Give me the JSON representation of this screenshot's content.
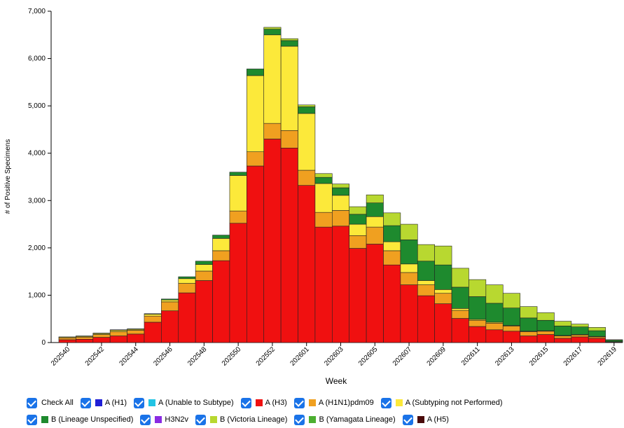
{
  "chart_data": {
    "type": "stacked-bar",
    "xlabel": "Week",
    "ylabel": "# of Positive Specimens",
    "categories": [
      "202540",
      null,
      "202542",
      null,
      "202544",
      null,
      "202546",
      null,
      "202548",
      null,
      "202550",
      null,
      "202552",
      null,
      "202601",
      null,
      "202603",
      null,
      "202605",
      null,
      "202607",
      null,
      "202609",
      null,
      "202611",
      null,
      "202613",
      null,
      "202615",
      null,
      "202617",
      null,
      "202619"
    ],
    "ylim": [
      0,
      7000
    ],
    "yticks": [
      0,
      {
        "value": 1000,
        "label": "1,000"
      },
      {
        "value": 2000,
        "label": "2,000"
      },
      {
        "value": 3000,
        "label": "3,000"
      },
      {
        "value": 4000,
        "label": "4,000"
      },
      {
        "value": 5000,
        "label": "5,000"
      },
      {
        "value": 6000,
        "label": "6,000"
      },
      {
        "value": 7000,
        "label": "7,000"
      }
    ],
    "check_all": "Check All",
    "series": [
      {
        "name": "A (H1)",
        "color": "#1f1fd6",
        "values": [
          0,
          0,
          0,
          0,
          0,
          0,
          0,
          0,
          0,
          0,
          0,
          0,
          0,
          0,
          0,
          0,
          0,
          0,
          0,
          0,
          0,
          0,
          0,
          0,
          0,
          0,
          0,
          0,
          0,
          0,
          0,
          0,
          0
        ]
      },
      {
        "name": "A (Unable to Subtype)",
        "color": "#22c4e4",
        "values": [
          0,
          0,
          0,
          0,
          0,
          0,
          0,
          0,
          0,
          0,
          0,
          0,
          0,
          0,
          0,
          0,
          0,
          0,
          0,
          0,
          0,
          0,
          0,
          0,
          0,
          0,
          0,
          0,
          0,
          0,
          0,
          0,
          0
        ]
      },
      {
        "name": "A (H3)",
        "color": "#f01010",
        "values": [
          60,
          70,
          110,
          140,
          180,
          430,
          670,
          1050,
          1310,
          1730,
          2520,
          3730,
          4300,
          4110,
          3320,
          2440,
          2460,
          1990,
          2080,
          1640,
          1220,
          990,
          820,
          510,
          340,
          270,
          240,
          140,
          170,
          90,
          120,
          90,
          10
        ]
      },
      {
        "name": "A (H1N1)pdm09",
        "color": "#f0a020",
        "values": [
          40,
          45,
          60,
          90,
          80,
          130,
          190,
          200,
          200,
          210,
          260,
          300,
          330,
          370,
          320,
          310,
          330,
          270,
          360,
          300,
          260,
          230,
          220,
          170,
          130,
          140,
          110,
          90,
          70,
          50,
          40,
          30,
          5
        ]
      },
      {
        "name": "A (Subtyping not Performed)",
        "color": "#fce93a",
        "values": [
          15,
          15,
          20,
          30,
          20,
          40,
          40,
          100,
          140,
          260,
          750,
          1610,
          1870,
          1780,
          1200,
          610,
          320,
          240,
          220,
          190,
          180,
          90,
          80,
          40,
          20,
          20,
          10,
          10,
          10,
          10,
          10,
          10,
          5
        ]
      },
      {
        "name": "B (Lineage Unspecified)",
        "color": "#1e8a2e",
        "values": [
          5,
          10,
          10,
          10,
          10,
          10,
          20,
          40,
          70,
          70,
          70,
          140,
          120,
          120,
          140,
          130,
          160,
          210,
          290,
          340,
          510,
          410,
          520,
          450,
          480,
          400,
          370,
          280,
          220,
          200,
          160,
          120,
          30
        ]
      },
      {
        "name": "H3N2v",
        "color": "#8a2be2",
        "values": [
          0,
          0,
          0,
          0,
          0,
          0,
          0,
          0,
          0,
          0,
          0,
          0,
          0,
          0,
          0,
          0,
          0,
          0,
          0,
          0,
          0,
          0,
          0,
          0,
          0,
          0,
          0,
          0,
          0,
          0,
          0,
          0,
          0
        ]
      },
      {
        "name": "B (Victoria Lineage)",
        "color": "#b8d830",
        "values": [
          0,
          0,
          0,
          0,
          0,
          0,
          0,
          0,
          0,
          0,
          0,
          0,
          40,
          40,
          40,
          80,
          80,
          160,
          170,
          270,
          330,
          350,
          400,
          400,
          360,
          390,
          310,
          240,
          160,
          100,
          60,
          70,
          10
        ]
      },
      {
        "name": "B (Yamagata Lineage)",
        "color": "#4caf30",
        "values": [
          0,
          0,
          0,
          0,
          0,
          0,
          0,
          0,
          0,
          0,
          0,
          0,
          0,
          0,
          0,
          0,
          0,
          0,
          0,
          0,
          0,
          0,
          0,
          0,
          0,
          0,
          0,
          0,
          0,
          0,
          0,
          0,
          0
        ]
      },
      {
        "name": "A (H5)",
        "color": "#4a0a0a",
        "values": [
          0,
          0,
          0,
          0,
          0,
          0,
          0,
          0,
          0,
          0,
          0,
          0,
          0,
          0,
          0,
          0,
          0,
          0,
          0,
          0,
          0,
          0,
          0,
          0,
          0,
          0,
          0,
          0,
          0,
          0,
          0,
          0,
          0
        ]
      }
    ]
  }
}
